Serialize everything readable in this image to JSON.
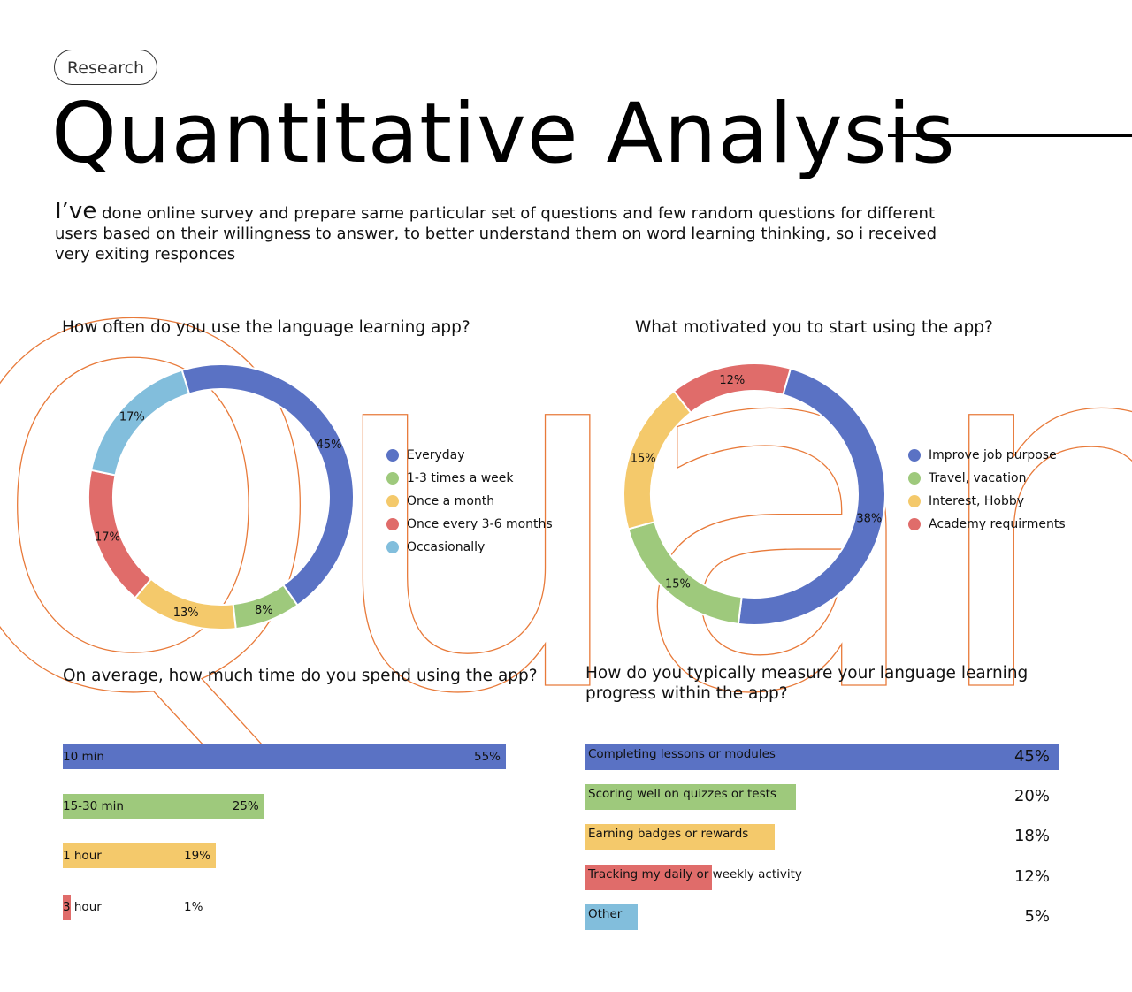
{
  "header": {
    "tag": "Research",
    "title": "Quantitative Analysis",
    "intro_lead": "I’ve",
    "intro_rest": "done online survey and prepare same particular set of questions and few random questions for different users based on their willingness to answer, to better understand them on word learning thinking, so i received very exiting responces"
  },
  "colors": {
    "blue": "#5a72c4",
    "green": "#9ec97c",
    "yellow": "#f4c96b",
    "red": "#e06c6a",
    "light_blue": "#82bedc",
    "outline_orange": "#e87a3a"
  },
  "chart_data": [
    {
      "type": "pie",
      "title": "How often do you use the language learning app?",
      "categories": [
        "Everyday",
        "1-3 times a week",
        "Once a month",
        "Once every 3-6 months",
        "Occasionally"
      ],
      "values": [
        45,
        8,
        13,
        17,
        17
      ],
      "value_labels": [
        "45%",
        "8%",
        "13%",
        "17%",
        "17%"
      ],
      "colors": [
        "#5a72c4",
        "#9ec97c",
        "#f4c96b",
        "#e06c6a",
        "#82bedc"
      ],
      "donut": true,
      "legend": "right"
    },
    {
      "type": "pie",
      "title": "What motivated you to start using the app?",
      "categories": [
        "Improve job purpose",
        "Travel, vacation",
        "Interest, Hobby",
        "Academy requirments"
      ],
      "values": [
        38,
        15,
        15,
        12
      ],
      "value_labels": [
        "38%",
        "15%",
        "15%",
        "12%"
      ],
      "colors": [
        "#5a72c4",
        "#9ec97c",
        "#f4c96b",
        "#e06c6a"
      ],
      "donut": true,
      "legend": "right"
    },
    {
      "type": "bar",
      "orientation": "horizontal",
      "title": "On average, how much time do you spend using the app?",
      "categories": [
        "10 min",
        "15-30 min",
        "1 hour",
        "3 hour"
      ],
      "values": [
        55,
        25,
        19,
        1
      ],
      "value_labels": [
        "55%",
        "25%",
        "19%",
        "1%"
      ],
      "colors": [
        "#5a72c4",
        "#9ec97c",
        "#f4c96b",
        "#e06c6a"
      ],
      "xlim": [
        0,
        55
      ]
    },
    {
      "type": "bar",
      "orientation": "horizontal",
      "title": "How do you typically measure your language learning progress within the app?",
      "categories": [
        "Completing lessons or modules",
        "Scoring well on quizzes or tests",
        "Earning badges or rewards",
        "Tracking my daily or weekly activity",
        "Other"
      ],
      "values": [
        45,
        20,
        18,
        12,
        5
      ],
      "value_labels": [
        "45%",
        "20%",
        "18%",
        "12%",
        "5%"
      ],
      "colors": [
        "#5a72c4",
        "#9ec97c",
        "#f4c96b",
        "#e06c6a",
        "#82bedc"
      ],
      "xlim": [
        0,
        45
      ]
    }
  ]
}
